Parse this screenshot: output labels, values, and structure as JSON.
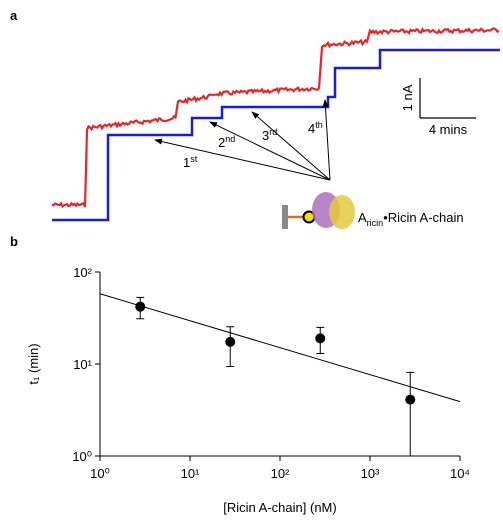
{
  "panel_a": {
    "label": "a",
    "annotations": [
      {
        "base": "1",
        "sup": "st"
      },
      {
        "base": "2",
        "sup": "nd"
      },
      {
        "base": "3",
        "sup": "rd"
      },
      {
        "base": "4",
        "sup": "th"
      }
    ],
    "complex": {
      "base": "A",
      "sub": "ricin",
      "rest": "•Ricin A-chain"
    },
    "scale_y": "1 nA",
    "scale_x": "4 mins"
  },
  "chart_data": {
    "type": "scatter",
    "panel": "b",
    "x_label": "[Ricin A-chain] (nM)",
    "y_label": "t₁ (min)",
    "log_x": true,
    "log_y": true,
    "color": "#000000",
    "x": [
      2.8,
      28,
      280,
      2800
    ],
    "values": [
      42,
      17.4,
      19,
      4.1
    ],
    "errors": [
      11,
      8,
      6,
      4
    ],
    "fit": {
      "x": [
        1,
        10000
      ],
      "y": [
        58,
        3.9
      ]
    },
    "xlim": [
      1,
      10000
    ],
    "ylim": [
      1,
      100
    ],
    "xticks": [
      {
        "value": 1,
        "label": "10⁰"
      },
      {
        "value": 10,
        "label": "10¹"
      },
      {
        "value": 100,
        "label": "10²"
      },
      {
        "value": 1000,
        "label": "10³"
      },
      {
        "value": 10000,
        "label": "10⁴"
      }
    ],
    "yticks": [
      {
        "value": 1,
        "label": "10⁰"
      },
      {
        "value": 10,
        "label": "10¹"
      },
      {
        "value": 100,
        "label": "10²"
      }
    ]
  }
}
